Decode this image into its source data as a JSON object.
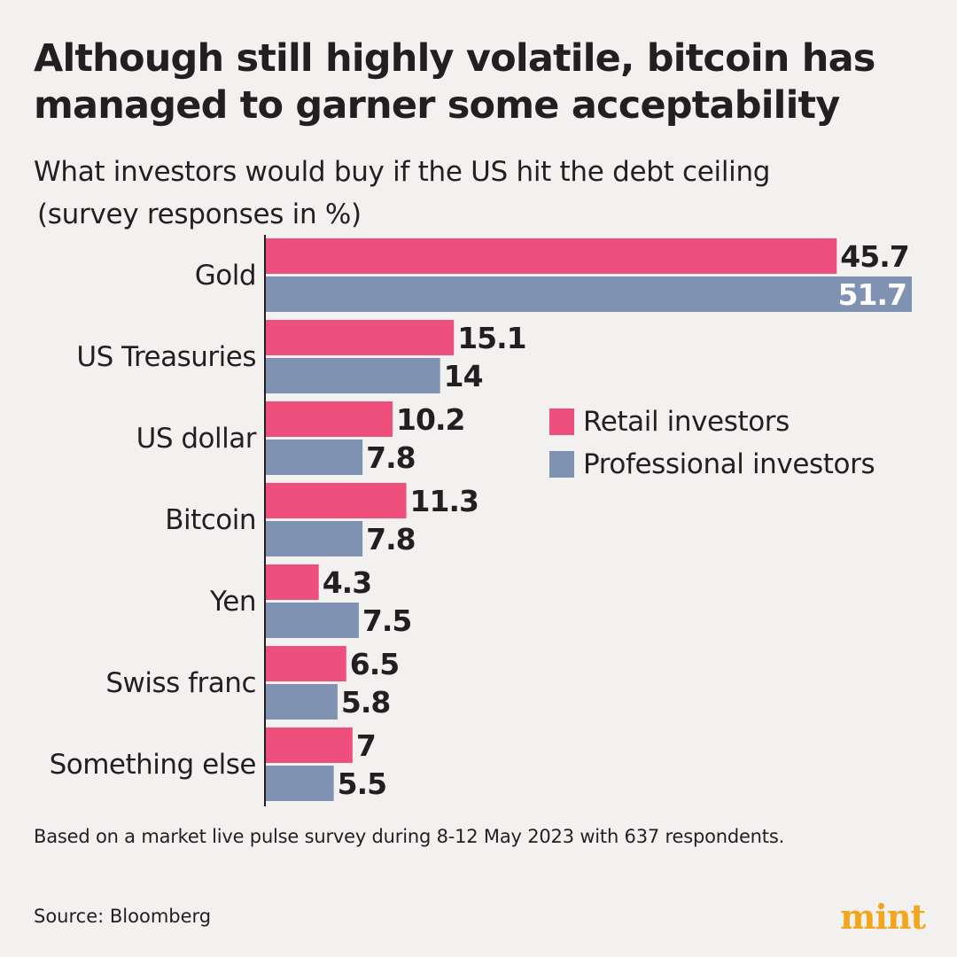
{
  "header": {
    "title": "Although still highly volatile, bitcoin has managed to garner some acceptability",
    "subtitle_line1": "What investors would buy if the US hit the debt ceiling",
    "subtitle_line2": "(survey responses in %)"
  },
  "chart_data": {
    "type": "bar",
    "orientation": "horizontal",
    "title": "What investors would buy if the US hit the debt ceiling",
    "ylabel": "(survey responses in %)",
    "categories": [
      "Gold",
      "US Treasuries",
      "US dollar",
      "Bitcoin",
      "Yen",
      "Swiss franc",
      "Something else"
    ],
    "series": [
      {
        "name": "Retail investors",
        "color": "#ee4f7c",
        "values": [
          45.7,
          15.1,
          10.2,
          11.3,
          4.3,
          6.5,
          7
        ]
      },
      {
        "name": "Professional investors",
        "color": "#7f92b1",
        "values": [
          51.7,
          14,
          7.8,
          7.8,
          7.5,
          5.8,
          5.5
        ]
      }
    ],
    "xlim": [
      0,
      51.7
    ],
    "legend_position": "right"
  },
  "legend": [
    {
      "label": "Retail investors",
      "color": "#ee4f7c"
    },
    {
      "label": "Professional investors",
      "color": "#7f92b1"
    }
  ],
  "footer": {
    "note": "Based on a market live pulse survey during 8-12 May 2023 with 637 respondents.",
    "source": "Source: Bloomberg",
    "logo": "mint"
  }
}
